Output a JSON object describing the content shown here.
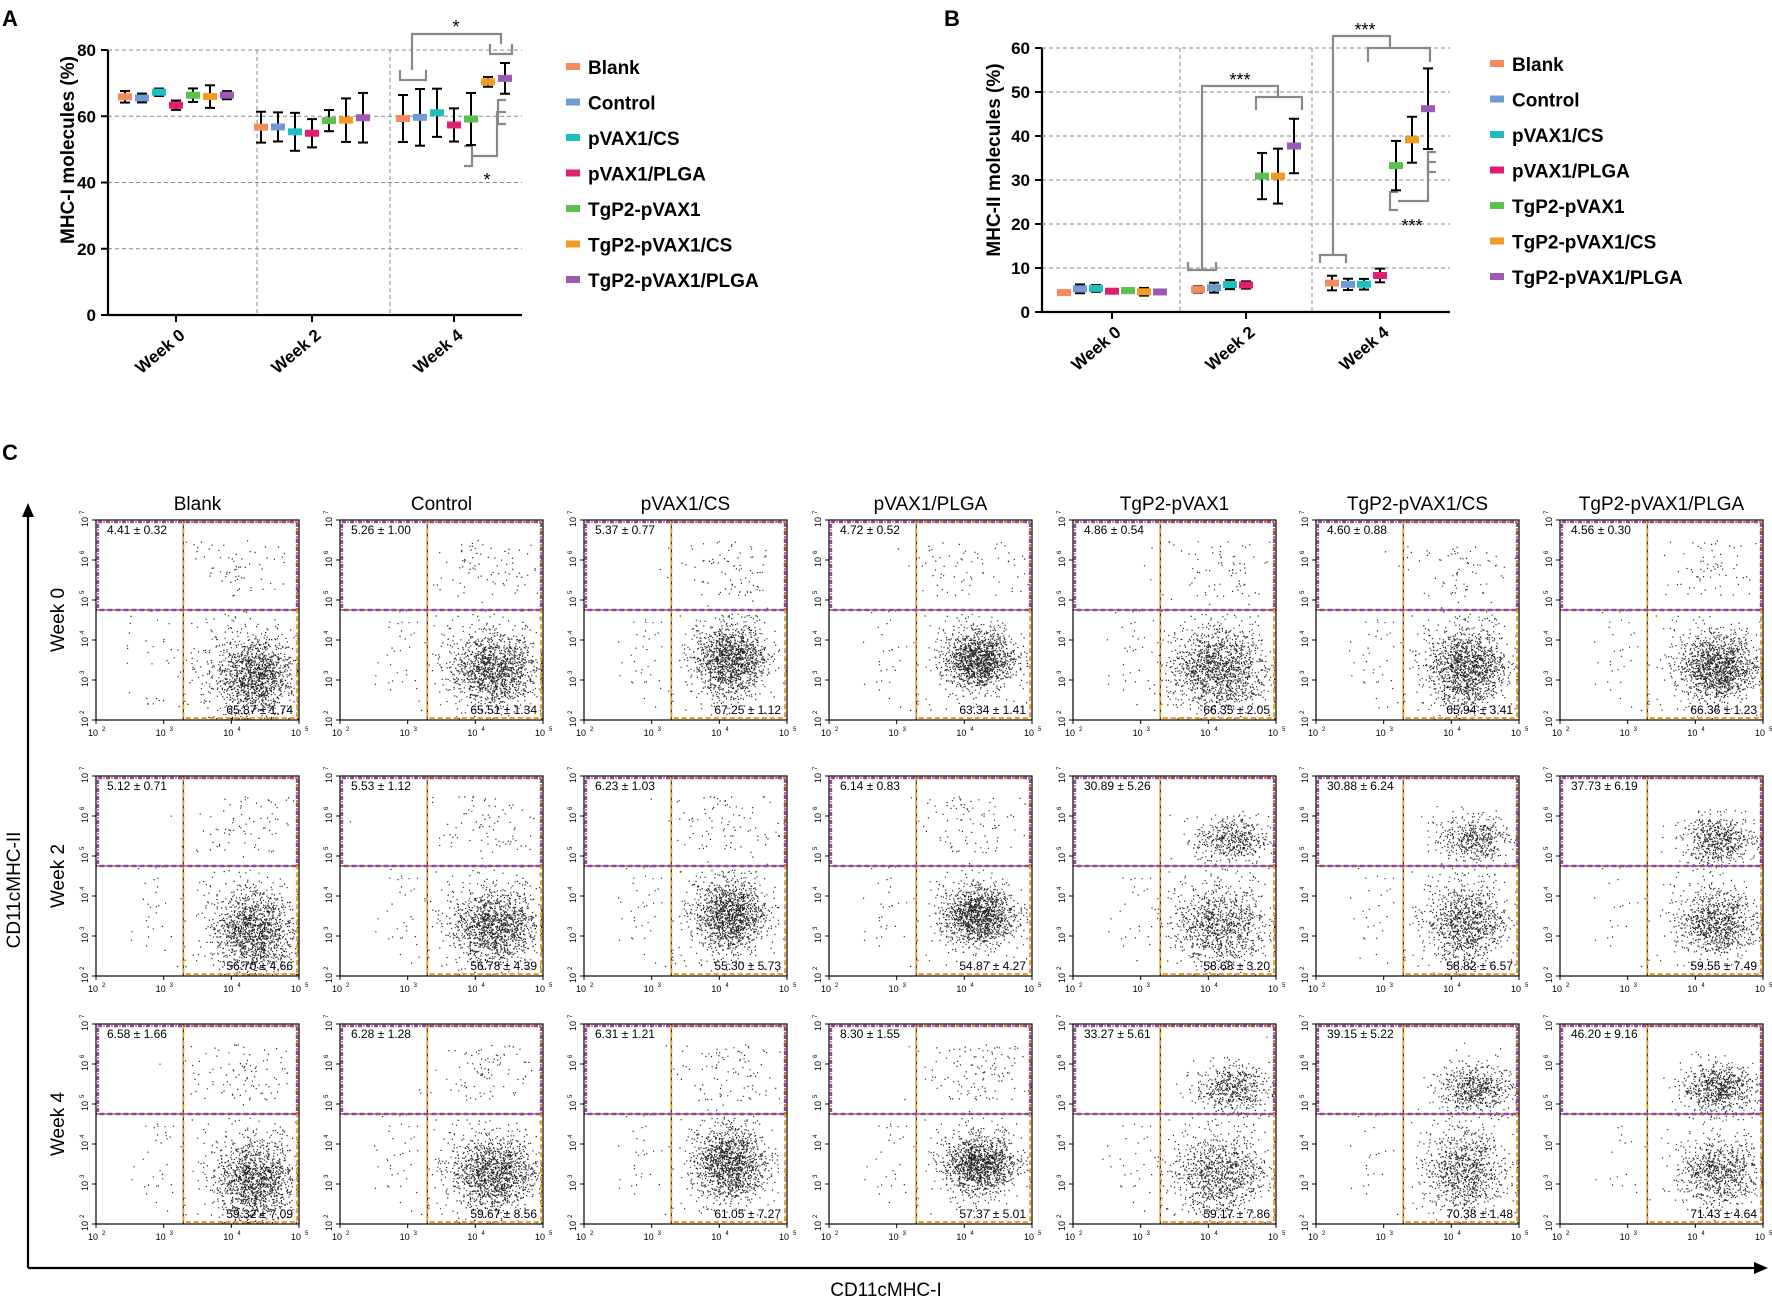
{
  "colors": {
    "Blank": "#F48B5C",
    "Control": "#6F9BD1",
    "pVAX1/CS": "#1FBFBF",
    "pVAX1/PLGA": "#E0206E",
    "TgP2-pVAX1": "#5CC04E",
    "TgP2-pVAX1/CS": "#F39A22",
    "TgP2-pVAX1/PLGA": "#9B5BB0",
    "gate_orange": "#F0A020",
    "gate_purple": "#8E4CA8",
    "bracket": "#888888"
  },
  "panel_labels": {
    "a": "A",
    "b": "B",
    "c": "C"
  },
  "chart_data": [
    {
      "id": "A",
      "type": "scatter",
      "ylabel": "MHC-I molecules (%)",
      "ylim": [
        0,
        80
      ],
      "yticks": [
        0,
        20,
        40,
        60,
        80
      ],
      "categories": [
        "Week 0",
        "Week 2",
        "Week 4"
      ],
      "legend": [
        "Blank",
        "Control",
        "pVAX1/CS",
        "pVAX1/PLGA",
        "TgP2-pVAX1",
        "TgP2-pVAX1/CS",
        "TgP2-pVAX1/PLGA"
      ],
      "series": [
        {
          "name": "Blank",
          "values": [
            65.87,
            56.7,
            59.32
          ],
          "errors": [
            1.74,
            4.66,
            7.09
          ]
        },
        {
          "name": "Control",
          "values": [
            65.51,
            56.78,
            59.67
          ],
          "errors": [
            1.34,
            4.39,
            8.56
          ]
        },
        {
          "name": "pVAX1/CS",
          "values": [
            67.25,
            55.3,
            61.05
          ],
          "errors": [
            1.12,
            5.73,
            7.27
          ]
        },
        {
          "name": "pVAX1/PLGA",
          "values": [
            63.34,
            54.87,
            57.37
          ],
          "errors": [
            1.41,
            4.27,
            5.01
          ]
        },
        {
          "name": "TgP2-pVAX1",
          "values": [
            66.35,
            58.68,
            59.17
          ],
          "errors": [
            2.05,
            3.2,
            7.86
          ]
        },
        {
          "name": "TgP2-pVAX1/CS",
          "values": [
            65.94,
            58.82,
            70.38
          ],
          "errors": [
            3.41,
            6.57,
            1.48
          ]
        },
        {
          "name": "TgP2-pVAX1/PLGA",
          "values": [
            66.36,
            59.55,
            71.43
          ],
          "errors": [
            1.23,
            7.49,
            4.64
          ]
        }
      ],
      "significance": [
        "*",
        "*"
      ]
    },
    {
      "id": "B",
      "type": "scatter",
      "ylabel": "MHC-II molecules (%)",
      "ylim": [
        0,
        60
      ],
      "yticks": [
        0,
        10,
        20,
        30,
        40,
        50,
        60
      ],
      "categories": [
        "Week 0",
        "Week 2",
        "Week 4"
      ],
      "legend": [
        "Blank",
        "Control",
        "pVAX1/CS",
        "pVAX1/PLGA",
        "TgP2-pVAX1",
        "TgP2-pVAX1/CS",
        "TgP2-pVAX1/PLGA"
      ],
      "series": [
        {
          "name": "Blank",
          "values": [
            4.41,
            5.12,
            6.58
          ],
          "errors": [
            0.32,
            0.71,
            1.66
          ]
        },
        {
          "name": "Control",
          "values": [
            5.26,
            5.53,
            6.28
          ],
          "errors": [
            1.0,
            1.12,
            1.28
          ]
        },
        {
          "name": "pVAX1/CS",
          "values": [
            5.37,
            6.23,
            6.31
          ],
          "errors": [
            0.77,
            1.03,
            1.21
          ]
        },
        {
          "name": "pVAX1/PLGA",
          "values": [
            4.72,
            6.14,
            8.3
          ],
          "errors": [
            0.52,
            0.83,
            1.55
          ]
        },
        {
          "name": "TgP2-pVAX1",
          "values": [
            4.86,
            30.89,
            33.27
          ],
          "errors": [
            0.54,
            5.26,
            5.61
          ]
        },
        {
          "name": "TgP2-pVAX1/CS",
          "values": [
            4.6,
            30.88,
            39.15
          ],
          "errors": [
            0.88,
            6.24,
            5.22
          ]
        },
        {
          "name": "TgP2-pVAX1/PLGA",
          "values": [
            4.56,
            37.73,
            46.2
          ],
          "errors": [
            0.3,
            6.19,
            9.16
          ]
        }
      ],
      "significance": [
        "***",
        "***",
        "***"
      ]
    },
    {
      "id": "C",
      "type": "scatter",
      "kind": "flow-cytometry-grid",
      "xlabel": "CD11cMHC-I",
      "ylabel": "CD11cMHC-II",
      "columns": [
        "Blank",
        "Control",
        "pVAX1/CS",
        "pVAX1/PLGA",
        "TgP2-pVAX1",
        "TgP2-pVAX1/CS",
        "TgP2-pVAX1/PLGA"
      ],
      "rows": [
        "Week 0",
        "Week 2",
        "Week 4"
      ],
      "x_ticks": [
        "10",
        "10",
        "10",
        "10"
      ],
      "x_tick_exps": [
        "2",
        "3",
        "4",
        "5"
      ],
      "y_ticks": [
        "10",
        "10",
        "10",
        "10",
        "10",
        "10"
      ],
      "y_tick_exps": [
        "2",
        "3",
        "4",
        "5",
        "6",
        "7"
      ],
      "upper_labels": [
        [
          "4.41 ± 0.32",
          "5.26 ± 1.00",
          "5.37 ± 0.77",
          "4.72 ± 0.52",
          "4.86 ± 0.54",
          "4.60 ± 0.88",
          "4.56 ± 0.30"
        ],
        [
          "5.12 ± 0.71",
          "5.53 ± 1.12",
          "6.23 ± 1.03",
          "6.14 ± 0.83",
          "30.89 ± 5.26",
          "30.88 ± 6.24",
          "37.73 ± 6.19"
        ],
        [
          "6.58 ± 1.66",
          "6.28 ± 1.28",
          "6.31 ± 1.21",
          "8.30 ± 1.55",
          "33.27 ± 5.61",
          "39.15 ± 5.22",
          "46.20 ± 9.16"
        ]
      ],
      "lower_labels": [
        [
          "65.87 ± 1.74",
          "65.51 ± 1.34",
          "67.25 ± 1.12",
          "63.34 ± 1.41",
          "66.35 ± 2.05",
          "65.94 ± 3.41",
          "66.36 ± 1.23"
        ],
        [
          "56.70 ± 4.66",
          "56.78 ± 4.39",
          "55.30 ± 5.73",
          "54.87 ± 4.27",
          "58.68 ± 3.20",
          "58.82 ± 6.57",
          "59.55 ± 7.49"
        ],
        [
          "59.32 ± 7.09",
          "59.67 ± 8.56",
          "61.05 ± 7.27",
          "57.37 ± 5.01",
          "59.17 ± 7.86",
          "70.38 ± 1.48",
          "71.43 ± 4.64"
        ]
      ]
    }
  ]
}
